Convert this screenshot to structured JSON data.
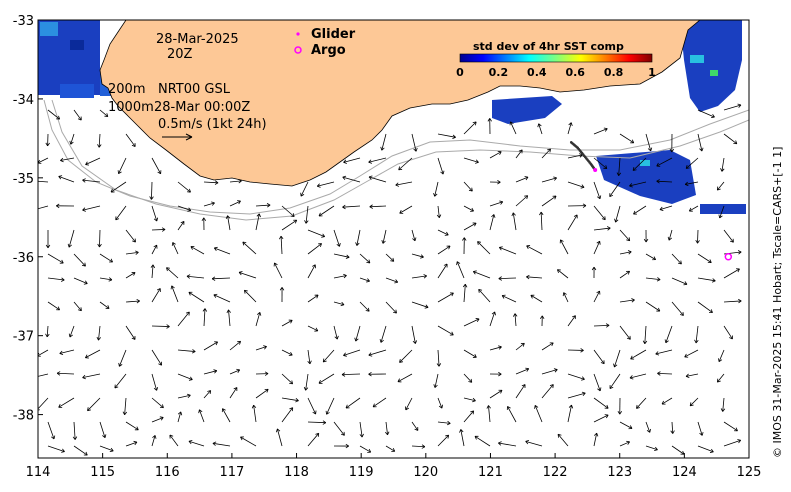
{
  "map": {
    "date_label": "28-Mar-2025",
    "time_label": "20Z",
    "depth_200": "200m",
    "depth_1000": "1000m",
    "product": "NRT00 GSL",
    "product_time": "28-Mar 00:00Z",
    "scale_label": "0.5m/s (1kt 24h)",
    "legend": {
      "glider": "Glider",
      "argo": "Argo",
      "glider_color": "#ff00ff",
      "argo_color": "#ff00ff"
    },
    "colorbar": {
      "title": "std dev of 4hr SST comp",
      "ticks": [
        "0",
        "0.2",
        "0.4",
        "0.6",
        "0.8",
        "1"
      ]
    },
    "credit": "© IMOS 31-Mar-2025 15:41 Hobart; Tscale=CARS+[-1 1]",
    "land_color": "#fdc896"
  },
  "chart_data": {
    "type": "map",
    "x_ticks": [
      "114",
      "115",
      "116",
      "117",
      "118",
      "119",
      "120",
      "121",
      "122",
      "123",
      "124",
      "125"
    ],
    "y_ticks": [
      "-33",
      "-34",
      "-35",
      "-36",
      "-37",
      "-38"
    ],
    "xlim": [
      114,
      125
    ],
    "ylim": [
      -38.55,
      -33
    ],
    "argo_float": {
      "lon": 124.68,
      "lat": -36.0
    },
    "glider_track": [
      [
        122.25,
        -34.55
      ],
      [
        122.35,
        -34.62
      ],
      [
        122.45,
        -34.72
      ],
      [
        122.55,
        -34.82
      ],
      [
        122.62,
        -34.9
      ]
    ]
  }
}
